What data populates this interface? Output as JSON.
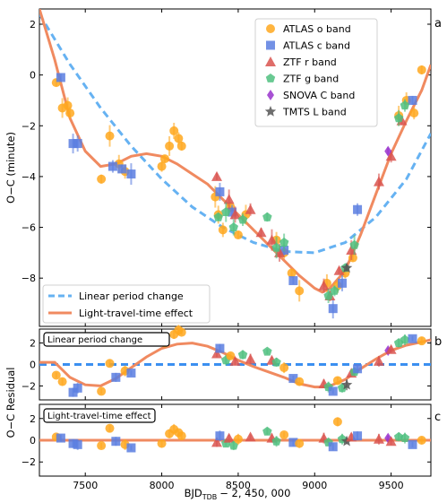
{
  "chart_data": [
    {
      "panel": "a",
      "type": "scatter",
      "ylabel": "O−C (minute)",
      "xlim": [
        7200,
        9760
      ],
      "ylim": [
        -9.9,
        2.6
      ],
      "yticks": [
        2,
        0,
        -2,
        -4,
        -6,
        -8
      ],
      "ytick_labels": [
        "2",
        "0",
        "−2",
        "−4",
        "−6",
        "−8"
      ],
      "legend_position": "top-right",
      "legend2_position": "bottom-left",
      "series": [
        {
          "name": "ATLAS o band",
          "color": "#ffa81f",
          "marker": "circle",
          "x": [
            7310,
            7350,
            7385,
            7400,
            7605,
            7660,
            7720,
            7760,
            8000,
            8020,
            8050,
            8080,
            8110,
            8130,
            8350,
            8370,
            8400,
            8450,
            8500,
            8550,
            8750,
            8800,
            8850,
            8900,
            9080,
            9150,
            9200,
            9250,
            9550,
            9600,
            9650,
            9700
          ],
          "y": [
            -0.3,
            -1.3,
            -1.2,
            -1.5,
            -4.1,
            -2.4,
            -3.5,
            -3.8,
            -3.6,
            -3.3,
            -2.8,
            -2.2,
            -2.5,
            -2.8,
            -4.8,
            -5.5,
            -6.1,
            -5.2,
            -6.3,
            -5.5,
            -6.5,
            -7.0,
            -7.8,
            -8.5,
            -8.2,
            -8.3,
            -7.8,
            -7.2,
            -1.6,
            -1.0,
            -1.5,
            0.2
          ]
        },
        {
          "name": "ATLAS c band",
          "color": "#5b7ee0",
          "marker": "square",
          "x": [
            7340,
            7420,
            7450,
            7680,
            7740,
            7800,
            8380,
            8460,
            8800,
            8860,
            9120,
            9180,
            9280,
            9640
          ],
          "y": [
            -0.1,
            -2.7,
            -2.7,
            -3.6,
            -3.7,
            -3.9,
            -4.6,
            -5.4,
            -6.9,
            -8.1,
            -9.2,
            -8.2,
            -5.3,
            -1.0
          ]
        },
        {
          "name": "ZTF r band",
          "color": "#d9534f",
          "marker": "triangle",
          "x": [
            8360,
            8440,
            8480,
            8580,
            8650,
            8720,
            8770,
            9060,
            9100,
            9160,
            9240,
            9420,
            9500,
            9570
          ],
          "y": [
            -4.0,
            -4.9,
            -5.5,
            -5.3,
            -6.2,
            -6.5,
            -7.0,
            -8.3,
            -8.7,
            -7.7,
            -6.9,
            -4.2,
            -3.2,
            -1.8
          ]
        },
        {
          "name": "ZTF g band",
          "color": "#4fbf7f",
          "marker": "pentagon",
          "x": [
            8370,
            8420,
            8470,
            8530,
            8690,
            8750,
            8800,
            9090,
            9130,
            9200,
            9260,
            9550,
            9590
          ],
          "y": [
            -5.6,
            -5.4,
            -6.0,
            -5.7,
            -5.6,
            -6.8,
            -6.6,
            -8.7,
            -8.5,
            -7.6,
            -6.7,
            -1.7,
            -1.2
          ]
        },
        {
          "name": "SNOVA C band",
          "color": "#9932cc",
          "marker": "diamond",
          "x": [
            9480
          ],
          "y": [
            -3.0
          ]
        },
        {
          "name": "TMTS L band",
          "color": "#555555",
          "marker": "star",
          "x": [
            9210
          ],
          "y": [
            -7.6
          ]
        },
        {
          "name": "Linear period change",
          "color": "#66b2f2",
          "marker": "dashed-line",
          "x": [
            7200,
            7400,
            7600,
            7800,
            8000,
            8200,
            8400,
            8600,
            8800,
            9000,
            9200,
            9400,
            9600,
            9760
          ],
          "y": [
            2.4,
            0.42,
            -1.3,
            -2.8,
            -4.1,
            -5.2,
            -6.0,
            -6.6,
            -6.95,
            -7.0,
            -6.6,
            -5.6,
            -4.1,
            -2.3
          ]
        },
        {
          "name": "Light-travel-time effect",
          "color": "#f08a60",
          "marker": "solid-line",
          "x": [
            7200,
            7300,
            7400,
            7500,
            7600,
            7700,
            7800,
            7900,
            8000,
            8100,
            8200,
            8300,
            8400,
            8500,
            8600,
            8700,
            8800,
            8900,
            9000,
            9050,
            9100,
            9200,
            9300,
            9400,
            9500,
            9600,
            9700,
            9760
          ],
          "y": [
            2.6,
            0.6,
            -1.7,
            -3.0,
            -3.6,
            -3.5,
            -3.2,
            -3.1,
            -3.2,
            -3.5,
            -3.9,
            -4.3,
            -4.9,
            -5.5,
            -6.1,
            -6.7,
            -7.3,
            -7.9,
            -8.4,
            -8.55,
            -8.4,
            -7.7,
            -6.3,
            -4.7,
            -3.1,
            -1.8,
            -0.6,
            0.4
          ]
        }
      ]
    },
    {
      "panel": "b",
      "type": "scatter",
      "title": "Linear period change",
      "xlim": [
        7200,
        9760
      ],
      "ylim": [
        -3.3,
        3.3
      ],
      "yticks": [
        2,
        0,
        -2
      ],
      "ytick_labels": [
        "2",
        "0",
        "−2"
      ],
      "residual_model": {
        "color": "#f08a60",
        "x": [
          7200,
          7300,
          7400,
          7500,
          7600,
          7700,
          7800,
          7900,
          8000,
          8100,
          8200,
          8300,
          8400,
          8500,
          8600,
          8700,
          8800,
          8900,
          9000,
          9050,
          9100,
          9200,
          9300,
          9400,
          9500,
          9600,
          9700,
          9760
        ],
        "y": [
          0.2,
          0.2,
          -1.2,
          -1.9,
          -2.0,
          -1.3,
          -0.3,
          0.7,
          1.5,
          1.9,
          2.0,
          1.7,
          1.1,
          0.4,
          -0.2,
          -0.7,
          -1.2,
          -1.8,
          -2.1,
          -2.1,
          -2.0,
          -1.4,
          -0.4,
          0.5,
          1.3,
          1.8,
          2.1,
          2.3
        ]
      },
      "zero_line": {
        "color": "#3b8ff0",
        "y": 0
      },
      "points": [
        {
          "x": 7310,
          "y": -1.0,
          "c": "#ffa81f"
        },
        {
          "x": 7350,
          "y": -1.6,
          "c": "#ffa81f"
        },
        {
          "x": 7420,
          "y": -2.6,
          "c": "#5b7ee0"
        },
        {
          "x": 7450,
          "y": -2.2,
          "c": "#5b7ee0"
        },
        {
          "x": 7605,
          "y": -2.5,
          "c": "#ffa81f"
        },
        {
          "x": 7660,
          "y": 0.1,
          "c": "#ffa81f"
        },
        {
          "x": 7700,
          "y": -1.2,
          "c": "#5b7ee0"
        },
        {
          "x": 7760,
          "y": -0.6,
          "c": "#ffa81f"
        },
        {
          "x": 7800,
          "y": -0.8,
          "c": "#5b7ee0"
        },
        {
          "x": 8020,
          "y": 2.0,
          "c": "#ffa81f"
        },
        {
          "x": 8080,
          "y": 2.8,
          "c": "#ffa81f"
        },
        {
          "x": 8110,
          "y": 3.2,
          "c": "#ffa81f"
        },
        {
          "x": 8130,
          "y": 3.0,
          "c": "#ffa81f"
        },
        {
          "x": 8360,
          "y": 1.0,
          "c": "#d9534f"
        },
        {
          "x": 8380,
          "y": 1.5,
          "c": "#5b7ee0"
        },
        {
          "x": 8420,
          "y": 0.4,
          "c": "#4fbf7f"
        },
        {
          "x": 8450,
          "y": 0.8,
          "c": "#ffa81f"
        },
        {
          "x": 8480,
          "y": 0.3,
          "c": "#d9534f"
        },
        {
          "x": 8530,
          "y": 0.9,
          "c": "#4fbf7f"
        },
        {
          "x": 8580,
          "y": 0.5,
          "c": "#d9534f"
        },
        {
          "x": 8690,
          "y": 1.2,
          "c": "#4fbf7f"
        },
        {
          "x": 8720,
          "y": 0.4,
          "c": "#d9534f"
        },
        {
          "x": 8750,
          "y": 0.2,
          "c": "#4fbf7f"
        },
        {
          "x": 8800,
          "y": -0.3,
          "c": "#ffa81f"
        },
        {
          "x": 8860,
          "y": -1.3,
          "c": "#5b7ee0"
        },
        {
          "x": 8900,
          "y": -1.6,
          "c": "#ffa81f"
        },
        {
          "x": 9060,
          "y": -1.8,
          "c": "#d9534f"
        },
        {
          "x": 9090,
          "y": -2.1,
          "c": "#4fbf7f"
        },
        {
          "x": 9120,
          "y": -2.5,
          "c": "#5b7ee0"
        },
        {
          "x": 9150,
          "y": -1.5,
          "c": "#ffa81f"
        },
        {
          "x": 9180,
          "y": -2.2,
          "c": "#4fbf7f"
        },
        {
          "x": 9210,
          "y": -1.9,
          "c": "#555555"
        },
        {
          "x": 9240,
          "y": -0.8,
          "c": "#d9534f"
        },
        {
          "x": 9260,
          "y": -0.7,
          "c": "#4fbf7f"
        },
        {
          "x": 9280,
          "y": -0.4,
          "c": "#5b7ee0"
        },
        {
          "x": 9420,
          "y": 0.3,
          "c": "#d9534f"
        },
        {
          "x": 9480,
          "y": 1.3,
          "c": "#9932cc"
        },
        {
          "x": 9500,
          "y": 1.4,
          "c": "#d9534f"
        },
        {
          "x": 9550,
          "y": 2.0,
          "c": "#4fbf7f"
        },
        {
          "x": 9590,
          "y": 2.3,
          "c": "#4fbf7f"
        },
        {
          "x": 9640,
          "y": 2.4,
          "c": "#5b7ee0"
        },
        {
          "x": 9700,
          "y": 2.2,
          "c": "#ffa81f"
        }
      ]
    },
    {
      "panel": "c",
      "type": "scatter",
      "title": "Light-travel-time effect",
      "xlabel": "BJD",
      "xlabel_sub": "TDB",
      "xlabel_tail": "− 2, 450, 000",
      "xlim": [
        7200,
        9760
      ],
      "ylim": [
        -3.3,
        3.3
      ],
      "xticks": [
        7500,
        8000,
        8500,
        9000,
        9500
      ],
      "xtick_labels": [
        "7500",
        "8000",
        "8500",
        "9000",
        "9500"
      ],
      "yticks": [
        2,
        0,
        -2
      ],
      "ytick_labels": [
        "2",
        "0",
        "−2"
      ],
      "residual_model": {
        "color": "#f08a60",
        "x": [
          7200,
          9760
        ],
        "y": [
          0,
          0
        ]
      },
      "points": [
        {
          "x": 7310,
          "y": 0.3,
          "c": "#ffa81f"
        },
        {
          "x": 7340,
          "y": 0.2,
          "c": "#5b7ee0"
        },
        {
          "x": 7420,
          "y": -0.3,
          "c": "#5b7ee0"
        },
        {
          "x": 7450,
          "y": -0.4,
          "c": "#5b7ee0"
        },
        {
          "x": 7605,
          "y": -0.5,
          "c": "#ffa81f"
        },
        {
          "x": 7660,
          "y": 1.1,
          "c": "#ffa81f"
        },
        {
          "x": 7700,
          "y": -0.1,
          "c": "#5b7ee0"
        },
        {
          "x": 7760,
          "y": -0.4,
          "c": "#ffa81f"
        },
        {
          "x": 7800,
          "y": -0.7,
          "c": "#5b7ee0"
        },
        {
          "x": 8000,
          "y": -0.3,
          "c": "#ffa81f"
        },
        {
          "x": 8050,
          "y": 0.6,
          "c": "#ffa81f"
        },
        {
          "x": 8080,
          "y": 1.0,
          "c": "#ffa81f"
        },
        {
          "x": 8110,
          "y": 0.7,
          "c": "#ffa81f"
        },
        {
          "x": 8130,
          "y": 0.4,
          "c": "#ffa81f"
        },
        {
          "x": 8360,
          "y": -0.2,
          "c": "#d9534f"
        },
        {
          "x": 8380,
          "y": 0.4,
          "c": "#5b7ee0"
        },
        {
          "x": 8420,
          "y": -0.3,
          "c": "#4fbf7f"
        },
        {
          "x": 8440,
          "y": 0.2,
          "c": "#d9534f"
        },
        {
          "x": 8470,
          "y": -0.5,
          "c": "#4fbf7f"
        },
        {
          "x": 8500,
          "y": 0.1,
          "c": "#ffa81f"
        },
        {
          "x": 8580,
          "y": 0.3,
          "c": "#d9534f"
        },
        {
          "x": 8690,
          "y": 0.8,
          "c": "#4fbf7f"
        },
        {
          "x": 8720,
          "y": 0.2,
          "c": "#d9534f"
        },
        {
          "x": 8750,
          "y": -0.1,
          "c": "#4fbf7f"
        },
        {
          "x": 8800,
          "y": 0.5,
          "c": "#ffa81f"
        },
        {
          "x": 8860,
          "y": -0.2,
          "c": "#5b7ee0"
        },
        {
          "x": 8900,
          "y": -0.3,
          "c": "#ffa81f"
        },
        {
          "x": 9060,
          "y": 0.2,
          "c": "#d9534f"
        },
        {
          "x": 9090,
          "y": -0.2,
          "c": "#4fbf7f"
        },
        {
          "x": 9120,
          "y": -0.6,
          "c": "#5b7ee0"
        },
        {
          "x": 9150,
          "y": 1.7,
          "c": "#ffa81f"
        },
        {
          "x": 9180,
          "y": 0.1,
          "c": "#4fbf7f"
        },
        {
          "x": 9210,
          "y": -0.1,
          "c": "#555555"
        },
        {
          "x": 9240,
          "y": 0.3,
          "c": "#d9534f"
        },
        {
          "x": 9280,
          "y": 0.4,
          "c": "#5b7ee0"
        },
        {
          "x": 9420,
          "y": 0.1,
          "c": "#d9534f"
        },
        {
          "x": 9480,
          "y": 0.2,
          "c": "#9932cc"
        },
        {
          "x": 9500,
          "y": -0.1,
          "c": "#d9534f"
        },
        {
          "x": 9550,
          "y": 0.3,
          "c": "#4fbf7f"
        },
        {
          "x": 9590,
          "y": 0.2,
          "c": "#4fbf7f"
        },
        {
          "x": 9640,
          "y": -0.4,
          "c": "#5b7ee0"
        },
        {
          "x": 9700,
          "y": 0.0,
          "c": "#ffa81f"
        }
      ]
    }
  ],
  "shared_ylabel": "O−C Residual",
  "panel_labels": [
    "a",
    "b",
    "c"
  ]
}
